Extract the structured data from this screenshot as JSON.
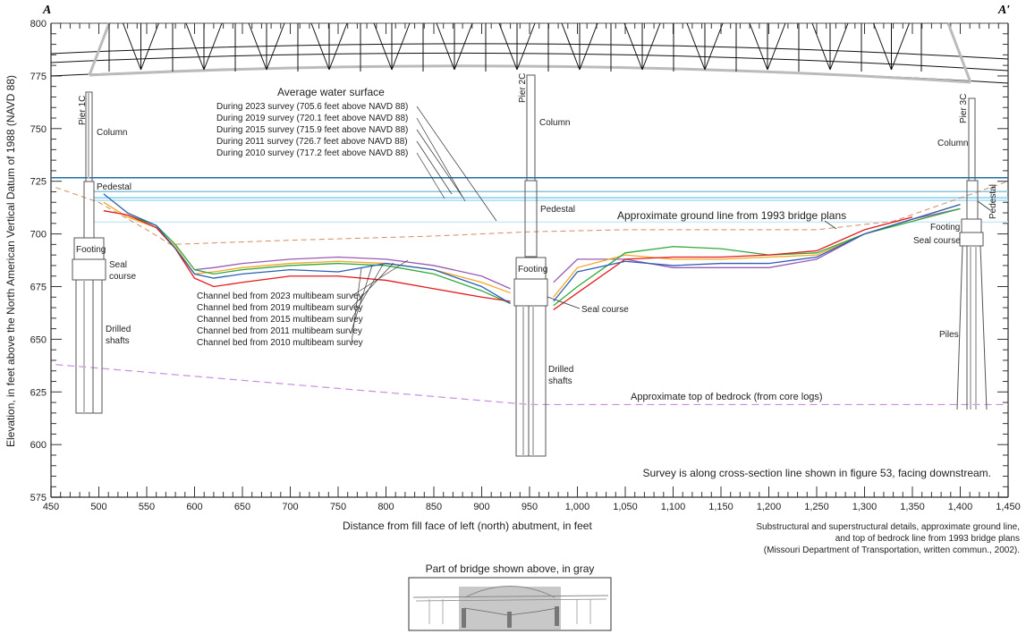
{
  "chart_data": {
    "type": "line",
    "title": "",
    "section_labels": {
      "left": "A",
      "right": "A′"
    },
    "xlabel": "Distance from fill face of left (north) abutment, in feet",
    "ylabel": "Elevation, in feet above the North American Vertical Datum of 1988 (NAVD 88)",
    "xlim": [
      450,
      1450
    ],
    "ylim": [
      575,
      800
    ],
    "x_ticks": [
      "450",
      "500",
      "550",
      "600",
      "650",
      "700",
      "750",
      "800",
      "850",
      "900",
      "950",
      "1,000",
      "1,050",
      "1,100",
      "1,150",
      "1,200",
      "1,250",
      "1,300",
      "1,350",
      "1,400",
      "1,450"
    ],
    "y_ticks": [
      "575",
      "600",
      "625",
      "650",
      "675",
      "700",
      "725",
      "750",
      "775",
      "800"
    ],
    "grid": false,
    "water_surface": {
      "heading": "Average water surface",
      "series": [
        {
          "name": "During 2023 survey (705.6 feet above NAVD 88)",
          "elevation": 705.6,
          "color": "#cde9f6"
        },
        {
          "name": "During 2019 survey (720.1 feet above NAVD 88)",
          "elevation": 720.1,
          "color": "#8cc3dc"
        },
        {
          "name": "During 2015 survey (715.9 feet above NAVD 88)",
          "elevation": 715.9,
          "color": "#a9dcf0"
        },
        {
          "name": "During 2011 survey (726.7 feet above NAVD 88)",
          "elevation": 726.7,
          "color": "#1f6fa8"
        },
        {
          "name": "During 2010 survey (717.2 feet above NAVD 88)",
          "elevation": 717.2,
          "color": "#7fd0ef"
        }
      ]
    },
    "channel_bed": {
      "x": [
        505,
        530,
        560,
        580,
        600,
        620,
        650,
        700,
        750,
        800,
        850,
        900,
        930,
        975,
        1000,
        1050,
        1100,
        1150,
        1200,
        1250,
        1300,
        1350,
        1400
      ],
      "series": [
        {
          "name": "Channel bed from 2023 multibeam survey",
          "color": "#9b59b6",
          "values": [
            null,
            null,
            null,
            null,
            683,
            684,
            686,
            688,
            689,
            688,
            685,
            680,
            674,
            677,
            688,
            688,
            684,
            684,
            684,
            688,
            700,
            707,
            712
          ]
        },
        {
          "name": "Channel bed from 2019 multibeam survey",
          "color": "#f5a623",
          "values": [
            715,
            708,
            703,
            694,
            681,
            682,
            684,
            686,
            687,
            686,
            683,
            677,
            672,
            670,
            684,
            690,
            688,
            688,
            689,
            690,
            700,
            707,
            714
          ]
        },
        {
          "name": "Channel bed from 2015 multibeam survey",
          "color": "#2eaa3a",
          "values": [
            null,
            709,
            704,
            695,
            683,
            681,
            683,
            685,
            686,
            685,
            681,
            673,
            667,
            666,
            675,
            691,
            694,
            693,
            690,
            691,
            700,
            706,
            712
          ]
        },
        {
          "name": "Channel bed from 2011 multibeam survey",
          "color": "#e41a1c",
          "values": [
            711,
            709,
            703,
            693,
            679,
            675,
            677,
            680,
            680,
            678,
            674,
            670,
            668,
            664,
            672,
            688,
            689,
            689,
            690,
            692,
            702,
            708,
            null
          ]
        },
        {
          "name": "Channel bed from 2010 multibeam survey",
          "color": "#2b5fb4",
          "values": [
            719,
            710,
            704,
            693,
            681,
            679,
            681,
            683,
            682,
            686,
            683,
            675,
            667,
            668,
            682,
            687,
            685,
            686,
            686,
            689,
            700,
            707,
            714
          ]
        }
      ]
    },
    "ground_line_1993": {
      "name": "Approximate ground line from 1993 bridge plans",
      "color": "#d48a64",
      "x": [
        455,
        500,
        550,
        575,
        700,
        850,
        950,
        1050,
        1250,
        1330,
        1450
      ],
      "y": [
        722,
        715,
        702,
        695,
        697,
        699,
        701,
        702,
        702,
        706,
        725
      ]
    },
    "bedrock": {
      "name": "Approximate top of bedrock (from core logs)",
      "color": "#c58ee0",
      "x": [
        455,
        950,
        1450
      ],
      "y": [
        638,
        619,
        619
      ]
    },
    "piers": [
      {
        "name": "Pier 1C",
        "x": 495
      },
      {
        "name": "Pier 2C",
        "x": 952
      },
      {
        "name": "Pier 3C",
        "x": 1412
      }
    ]
  },
  "labels": {
    "pier1c": "Pier 1C",
    "pier2c": "Pier 2C",
    "pier3c": "Pier 3C",
    "column": "Column",
    "pedestal": "Pedestal",
    "footing": "Footing",
    "seal": "Seal",
    "course": "course",
    "seal_course": "Seal course",
    "drilled": "Drilled",
    "shafts": "shafts",
    "piles": "Piles",
    "ground_line": "Approximate ground line from 1993 bridge plans",
    "bedrock": "Approximate top of bedrock (from core logs)",
    "water_heading": "Average water surface",
    "survey_note": "Survey is along cross-section line shown in figure 53, facing downstream.",
    "source_line1": "Substructural and superstructural details, approximate ground line,",
    "source_line2": "and top of bedrock line from 1993 bridge plans",
    "source_line3": "(Missouri Department of Transportation, written commun., 2002).",
    "inset_title": "Part of bridge shown above, in gray"
  }
}
